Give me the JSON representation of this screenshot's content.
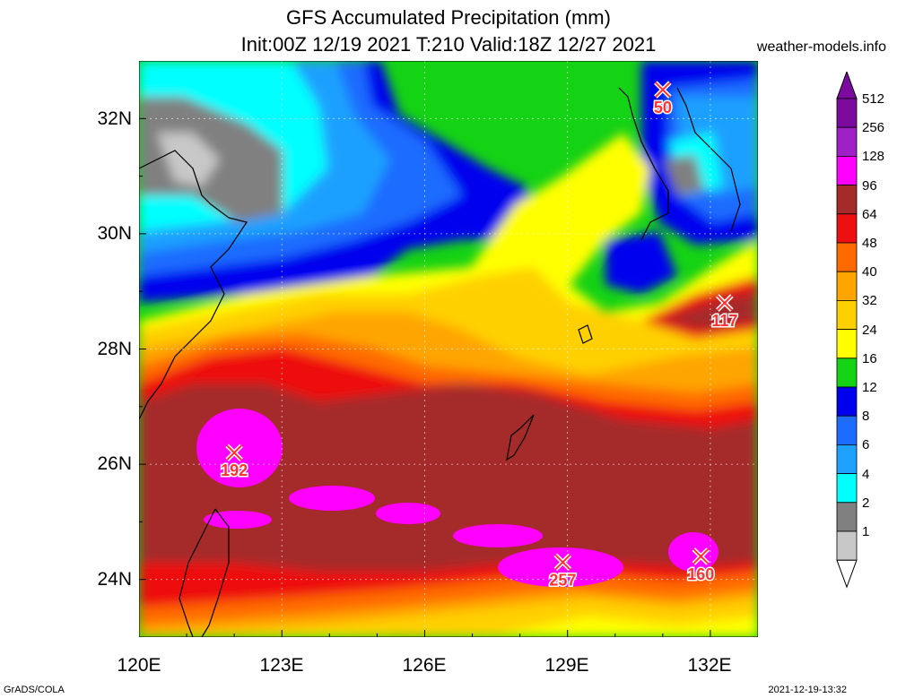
{
  "header": {
    "title_line1": "GFS Accumulated Precipitation (mm)",
    "title_line2": "Init:00Z 12/19 2021 T:210 Valid:18Z 12/27 2021",
    "site": "weather-models.info"
  },
  "footer": {
    "left": "GrADS/COLA",
    "right": "2021-12-19-13:32"
  },
  "axes": {
    "lat_labels": [
      "32N",
      "30N",
      "28N",
      "26N",
      "24N"
    ],
    "lon_labels": [
      "120E",
      "123E",
      "126E",
      "129E",
      "132E"
    ],
    "lon_range": [
      120,
      133
    ],
    "lat_range": [
      23,
      33
    ]
  },
  "colorbar": {
    "levels": [
      "512",
      "256",
      "128",
      "96",
      "64",
      "48",
      "40",
      "32",
      "24",
      "16",
      "12",
      "8",
      "6",
      "4",
      "2",
      "1"
    ],
    "colors": [
      "#7b0a9e",
      "#a020c8",
      "#ff00ff",
      "#a52a2a",
      "#ee1010",
      "#ff6a00",
      "#ffa500",
      "#ffd000",
      "#ffff00",
      "#14d214",
      "#0000ee",
      "#1e6cff",
      "#1ea0ff",
      "#00ffff",
      "#808080",
      "#c8c8c8"
    ],
    "bottom_color": "#ffffff"
  },
  "markers": [
    {
      "lon": 131.0,
      "lat": 32.5,
      "label": "50"
    },
    {
      "lon": 132.3,
      "lat": 28.8,
      "label": "117"
    },
    {
      "lon": 122.0,
      "lat": 26.2,
      "label": "192"
    },
    {
      "lon": 128.9,
      "lat": 24.3,
      "label": "257"
    },
    {
      "lon": 131.8,
      "lat": 24.4,
      "label": "160"
    }
  ]
}
